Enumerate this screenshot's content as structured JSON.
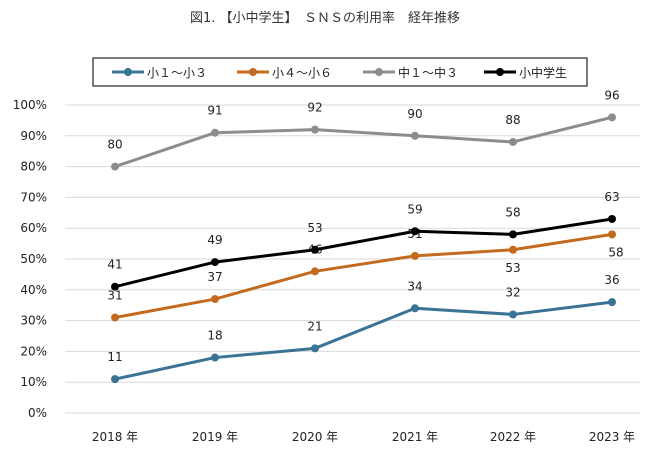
{
  "chart_data": {
    "type": "line",
    "title": "図1. 【小中学生】　ＳＮＳの利用率　経年推移",
    "xlabel": "",
    "ylabel": "",
    "categories": [
      "2018 年",
      "2019 年",
      "2020 年",
      "2021 年",
      "2022 年",
      "2023 年"
    ],
    "ylim": [
      0,
      100
    ],
    "yticks": [
      0,
      10,
      20,
      30,
      40,
      50,
      60,
      70,
      80,
      90,
      100
    ],
    "ytick_labels": [
      "0%",
      "10%",
      "20%",
      "30%",
      "40%",
      "50%",
      "60%",
      "70%",
      "80%",
      "90%",
      "100%"
    ],
    "grid": true,
    "legend_position": "top",
    "series": [
      {
        "name": "小１～小３",
        "color": "#3a7393",
        "values": [
          11,
          18,
          21,
          34,
          32,
          36
        ],
        "label_pos": [
          "above",
          "above",
          "above",
          "above",
          "above",
          "above"
        ]
      },
      {
        "name": "小４～小６",
        "color": "#c46a1e",
        "values": [
          31,
          37,
          46,
          51,
          53,
          58
        ],
        "label_pos": [
          "above",
          "above",
          "above",
          "above",
          "below",
          "below"
        ]
      },
      {
        "name": "中１～中３",
        "color": "#8c8c8c",
        "values": [
          80,
          91,
          92,
          90,
          88,
          96
        ],
        "label_pos": [
          "above",
          "above",
          "above",
          "above",
          "above",
          "above"
        ]
      },
      {
        "name": "小中学生",
        "color": "#000000",
        "values": [
          41,
          49,
          53,
          59,
          58,
          63
        ],
        "label_pos": [
          "above",
          "above",
          "above",
          "above",
          "above",
          "above"
        ]
      }
    ]
  }
}
